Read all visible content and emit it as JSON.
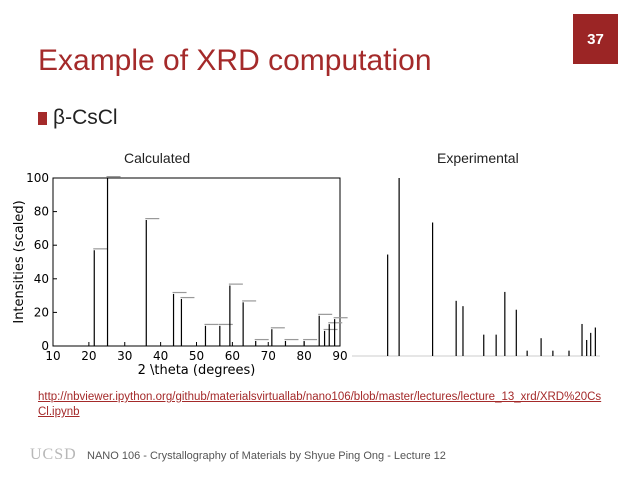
{
  "slide": {
    "number": "37",
    "title": "Example of XRD computation",
    "bullet": "β-CsCl",
    "caption_calculated": "Calculated",
    "caption_experimental": "Experimental",
    "link": "http://nbviewer.ipython.org/github/materialsvirtuallab/nano106/blob/master/lectures/lecture_13_xrd/XRD%20CsCl.ipynb",
    "footer": "NANO 106 - Crystallography of Materials by Shyue Ping Ong - Lecture 12",
    "logo_text": "UCSD",
    "accent_color": "#a42a2a"
  },
  "chart_data": [
    {
      "type": "bar",
      "title": "",
      "xlabel": "2 \\theta (degrees)",
      "ylabel": "Intensities (scaled)",
      "xlim": [
        10,
        90
      ],
      "ylim": [
        0,
        100
      ],
      "xticks": [
        10,
        20,
        30,
        40,
        50,
        60,
        70,
        80,
        90
      ],
      "yticks": [
        0,
        20,
        40,
        60,
        80,
        100
      ],
      "x": [
        21.5,
        25.2,
        36.0,
        43.6,
        45.8,
        52.5,
        56.5,
        59.3,
        63.0,
        66.5,
        71.0,
        74.8,
        80.0,
        84.2,
        85.7,
        87.0,
        88.5
      ],
      "values": [
        57,
        100,
        75,
        31,
        28,
        12,
        12,
        36,
        26,
        3,
        10,
        3,
        3,
        18,
        9,
        13,
        16
      ]
    },
    {
      "type": "bar",
      "title": "",
      "xlabel": "",
      "ylabel": "",
      "xlim": [
        10,
        90
      ],
      "ylim": [
        0,
        100
      ],
      "x": [
        21.5,
        25.2,
        36.0,
        43.6,
        45.8,
        52.5,
        56.5,
        59.3,
        63.0,
        66.5,
        71.0,
        74.8,
        80.0,
        84.2,
        85.7,
        87.0,
        88.5
      ],
      "values": [
        57,
        100,
        75,
        31,
        28,
        12,
        12,
        36,
        26,
        3,
        10,
        3,
        3,
        18,
        9,
        13,
        16
      ]
    }
  ]
}
